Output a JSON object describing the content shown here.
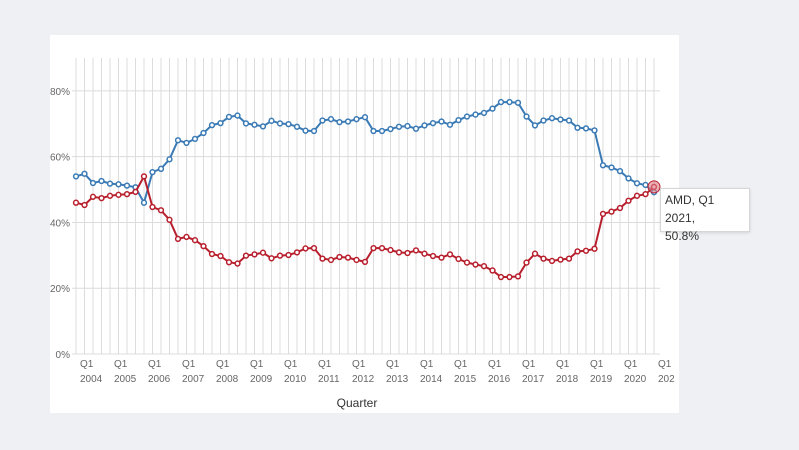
{
  "colors": {
    "background": "#eef0f4",
    "card": "#ffffff",
    "grid": "#dcdcdc",
    "intel": "#3a7ab5",
    "amd": "#b81f2d"
  },
  "chart_data": {
    "type": "line",
    "xlabel": "Quarter",
    "ylabel": "",
    "ylim": [
      0,
      90
    ],
    "yticks": [
      {
        "value": 0,
        "label": "0%"
      },
      {
        "value": 20,
        "label": "20%"
      },
      {
        "value": 40,
        "label": "40%"
      },
      {
        "value": 60,
        "label": "60%"
      },
      {
        "value": 80,
        "label": "80%"
      }
    ],
    "grid": true,
    "x_start": "Q1 2004",
    "xticks": [
      {
        "quarter": "Q1",
        "year": "2004"
      },
      {
        "quarter": "Q1",
        "year": "2005"
      },
      {
        "quarter": "Q1",
        "year": "2006"
      },
      {
        "quarter": "Q1",
        "year": "2007"
      },
      {
        "quarter": "Q1",
        "year": "2008"
      },
      {
        "quarter": "Q1",
        "year": "2009"
      },
      {
        "quarter": "Q1",
        "year": "2010"
      },
      {
        "quarter": "Q1",
        "year": "2011"
      },
      {
        "quarter": "Q1",
        "year": "2012"
      },
      {
        "quarter": "Q1",
        "year": "2013"
      },
      {
        "quarter": "Q1",
        "year": "2014"
      },
      {
        "quarter": "Q1",
        "year": "2015"
      },
      {
        "quarter": "Q1",
        "year": "2016"
      },
      {
        "quarter": "Q1",
        "year": "2017"
      },
      {
        "quarter": "Q1",
        "year": "2018"
      },
      {
        "quarter": "Q1",
        "year": "2019"
      },
      {
        "quarter": "Q1",
        "year": "2020"
      },
      {
        "quarter": "Q1",
        "year": "202"
      }
    ],
    "series": [
      {
        "color": "#3a7ab5",
        "values": [
          54,
          54.8,
          52,
          52.6,
          51.8,
          51.6,
          51.2,
          50.7,
          46,
          55.3,
          56.3,
          59.2,
          65,
          64.2,
          65.4,
          67.2,
          69.6,
          70.2,
          72.1,
          72.5,
          70.1,
          69.7,
          69.2,
          70.9,
          70.1,
          69.9,
          69.1,
          67.9,
          67.8,
          71,
          71.4,
          70.5,
          70.7,
          71.4,
          72,
          67.8,
          67.8,
          68.4,
          69.1,
          69.3,
          68.5,
          69.5,
          70.2,
          70.7,
          69.7,
          71.1,
          72.2,
          72.8,
          73.3,
          74.6,
          76.6,
          76.6,
          76.4,
          72.2,
          69.5,
          71,
          71.7,
          71.3,
          71,
          68.8,
          68.6,
          68,
          57.4,
          56.7,
          55.6,
          53.4,
          51.9,
          51.4,
          49.2
        ]
      },
      {
        "name": "AMD",
        "color": "#b81f2d",
        "values": [
          46,
          45.3,
          47.8,
          47.4,
          48.1,
          48.4,
          48.6,
          49.3,
          54,
          44.7,
          43.7,
          40.8,
          35,
          35.6,
          34.6,
          32.8,
          30.4,
          29.8,
          27.9,
          27.5,
          29.9,
          30.3,
          30.8,
          29.1,
          29.9,
          30.1,
          30.9,
          32.1,
          32.2,
          29,
          28.6,
          29.5,
          29.3,
          28.6,
          28,
          32.2,
          32.2,
          31.6,
          30.9,
          30.7,
          31.5,
          30.5,
          29.8,
          29.3,
          30.3,
          28.9,
          27.8,
          27.2,
          26.7,
          25.4,
          23.4,
          23.4,
          23.6,
          27.8,
          30.5,
          29,
          28.3,
          28.7,
          29,
          31.2,
          31.4,
          32,
          42.6,
          43.3,
          44.4,
          46.6,
          48.1,
          48.6,
          50.8
        ]
      }
    ],
    "tooltip": {
      "line1": "AMD, Q1 2021,",
      "line2": "50.8%"
    }
  }
}
